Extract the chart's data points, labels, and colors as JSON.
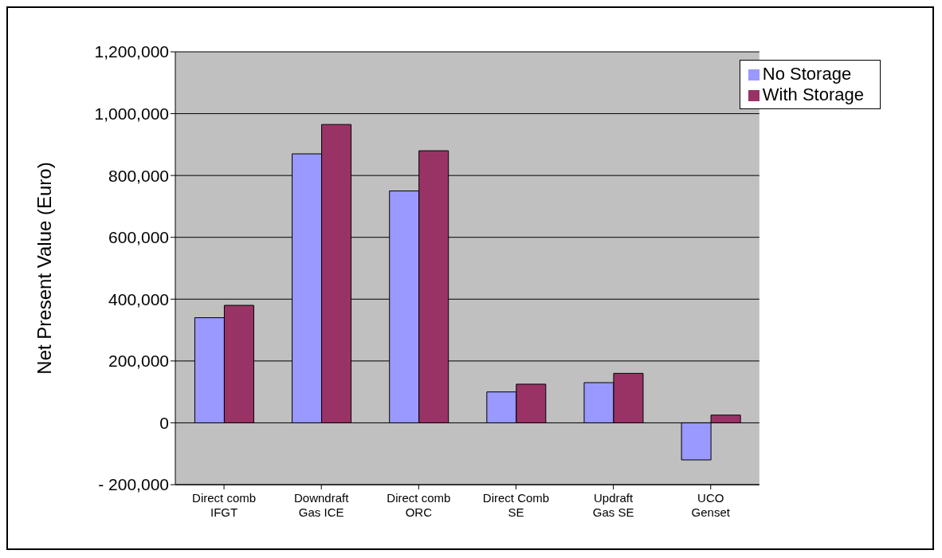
{
  "chart_data": {
    "type": "bar",
    "ylabel": "Net Present Value (Euro)",
    "categories": [
      "Direct comb\nIFGT",
      "Downdraft\nGas ICE",
      "Direct comb\nORC",
      "Direct Comb\nSE",
      "Updraft\nGas SE",
      "UCO\nGenset"
    ],
    "series": [
      {
        "name": "No Storage",
        "color": "#9999ff",
        "values": [
          340000,
          870000,
          750000,
          100000,
          130000,
          -120000
        ]
      },
      {
        "name": "With Storage",
        "color": "#993366",
        "values": [
          380000,
          965000,
          880000,
          125000,
          160000,
          25000
        ]
      }
    ],
    "ylim": [
      -200000,
      1200000
    ],
    "yticks": [
      {
        "value": -200000,
        "label": "- 200,000"
      },
      {
        "value": 0,
        "label": "0"
      },
      {
        "value": 200000,
        "label": "200,000"
      },
      {
        "value": 400000,
        "label": "400,000"
      },
      {
        "value": 600000,
        "label": "600,000"
      },
      {
        "value": 800000,
        "label": "800,000"
      },
      {
        "value": 1000000,
        "label": "1,000,000"
      },
      {
        "value": 1200000,
        "label": "1,200,000"
      }
    ],
    "grid": "y",
    "legend": "top right"
  }
}
